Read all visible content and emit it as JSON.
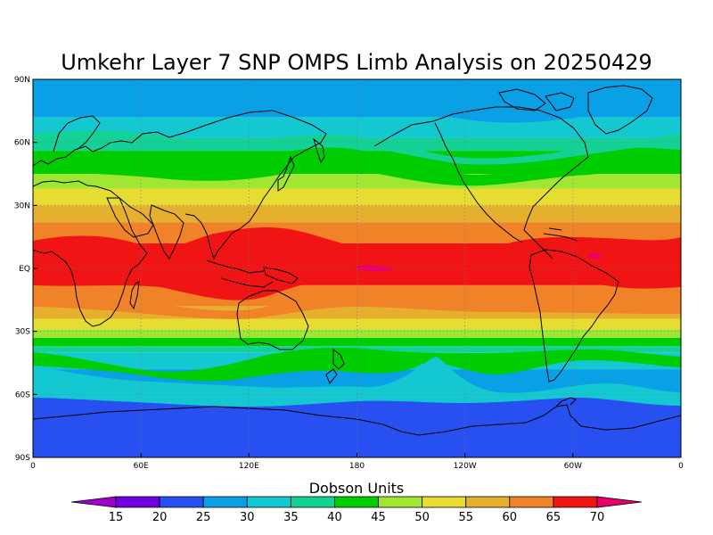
{
  "title": "Umkehr Layer 7 SNP OMPS Limb Analysis on 20250429",
  "x_ticks": [
    {
      "lon": 0,
      "label": "0"
    },
    {
      "lon": 60,
      "label": "60E"
    },
    {
      "lon": 120,
      "label": "120E"
    },
    {
      "lon": 180,
      "label": "180"
    },
    {
      "lon": 240,
      "label": "120W"
    },
    {
      "lon": 300,
      "label": "60W"
    },
    {
      "lon": 360,
      "label": "0"
    }
  ],
  "y_ticks": [
    {
      "lat": 90,
      "label": "90N"
    },
    {
      "lat": 60,
      "label": "60N"
    },
    {
      "lat": 30,
      "label": "30N"
    },
    {
      "lat": 0,
      "label": "EQ"
    },
    {
      "lat": -30,
      "label": "30S"
    },
    {
      "lat": -60,
      "label": "60S"
    },
    {
      "lat": -90,
      "label": "90S"
    }
  ],
  "colorbar": {
    "title": "Dobson Units",
    "levels": [
      "15",
      "20",
      "25",
      "30",
      "35",
      "40",
      "45",
      "50",
      "55",
      "60",
      "65",
      "70"
    ],
    "colors": [
      "#a000c8",
      "#7000e0",
      "#2850f0",
      "#0aa0e6",
      "#14c8d2",
      "#14d296",
      "#00cd00",
      "#a0e632",
      "#e6dc32",
      "#e6af2d",
      "#f08228",
      "#f01414",
      "#e6006e"
    ]
  },
  "bands": [
    {
      "color": "#2850f0",
      "lat_top": -90,
      "lat_bot": -60
    },
    {
      "color": "#0aa0e6",
      "lat_top": -60,
      "lat_bot": -48
    },
    {
      "color": "#14c8d2",
      "lat_top": -48,
      "lat_bot": -40
    },
    {
      "color": "#14d296",
      "lat_top": -40,
      "lat_bot": -37
    },
    {
      "color": "#00cd00",
      "lat_top": -37,
      "lat_bot": -33
    },
    {
      "color": "#a0e632",
      "lat_top": -33,
      "lat_bot": -29
    },
    {
      "color": "#e6dc32",
      "lat_top": -29,
      "lat_bot": -24
    },
    {
      "color": "#e6af2d",
      "lat_top": -24,
      "lat_bot": -18
    },
    {
      "color": "#f08228",
      "lat_top": -18,
      "lat_bot": -8
    },
    {
      "color": "#f01414",
      "lat_top": -8,
      "lat_bot": 12
    },
    {
      "color": "#f08228",
      "lat_top": 12,
      "lat_bot": 22
    },
    {
      "color": "#e6af2d",
      "lat_top": 22,
      "lat_bot": 30
    },
    {
      "color": "#e6dc32",
      "lat_top": 30,
      "lat_bot": 38
    },
    {
      "color": "#a0e632",
      "lat_top": 38,
      "lat_bot": 45
    },
    {
      "color": "#00cd00",
      "lat_top": 45,
      "lat_bot": 56
    },
    {
      "color": "#14d296",
      "lat_top": 56,
      "lat_bot": 62
    },
    {
      "color": "#14c8d2",
      "lat_top": 62,
      "lat_bot": 72
    },
    {
      "color": "#0aa0e6",
      "lat_top": 72,
      "lat_bot": 90
    }
  ]
}
